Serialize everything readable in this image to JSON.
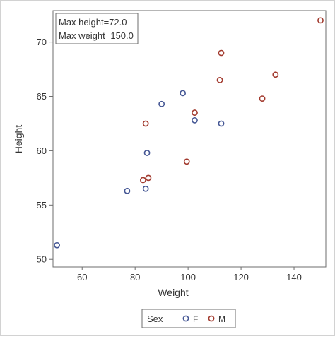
{
  "chart_data": {
    "type": "scatter",
    "xlabel": "Weight",
    "ylabel": "Height",
    "xlim": [
      49,
      152
    ],
    "ylim": [
      49.3,
      72.9
    ],
    "xticks": [
      60,
      80,
      100,
      120,
      140
    ],
    "yticks": [
      50,
      55,
      60,
      65,
      70
    ],
    "grid": false,
    "inset_lines": [
      "Max height=72.0",
      "Max weight=150.0"
    ],
    "legend": {
      "position": "bottom-center",
      "title": "Sex",
      "entries": [
        "F",
        "M"
      ]
    },
    "series": [
      {
        "name": "F",
        "color": "#445694",
        "points": [
          [
            50.5,
            51.3
          ],
          [
            77.0,
            56.3
          ],
          [
            84.0,
            56.5
          ],
          [
            84.5,
            59.8
          ],
          [
            90.0,
            64.3
          ],
          [
            98.0,
            65.3
          ],
          [
            102.5,
            62.8
          ],
          [
            112.5,
            62.5
          ]
        ]
      },
      {
        "name": "M",
        "color": "#A23A2E",
        "points": [
          [
            83.0,
            57.3
          ],
          [
            85.0,
            57.5
          ],
          [
            84.0,
            62.5
          ],
          [
            99.5,
            59.0
          ],
          [
            102.5,
            63.5
          ],
          [
            112.0,
            66.5
          ],
          [
            112.5,
            69.0
          ],
          [
            128.0,
            64.8
          ],
          [
            133.0,
            67.0
          ],
          [
            150.0,
            72.0
          ]
        ]
      }
    ]
  }
}
